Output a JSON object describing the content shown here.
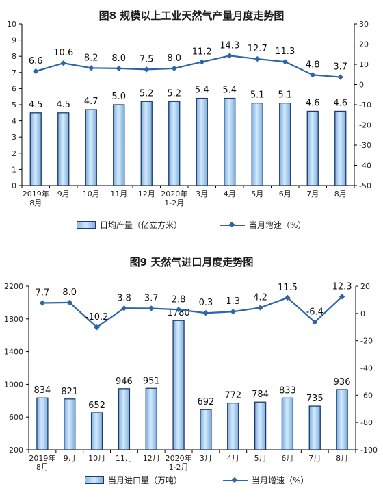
{
  "chart_data": [
    {
      "type": "bar+line",
      "title": "图8  规模以上工业天然气产量月度走势图",
      "categories": [
        "2019年\n8月",
        "9月",
        "10月",
        "11月",
        "12月",
        "2020年\n1-2月",
        "3月",
        "4月",
        "5月",
        "6月",
        "7月",
        "8月"
      ],
      "series": [
        {
          "name": "日均产量（亿立方米）",
          "type": "bar",
          "axis": "left",
          "values": [
            4.5,
            4.5,
            4.7,
            5.0,
            5.2,
            5.2,
            5.4,
            5.4,
            5.1,
            5.1,
            4.6,
            4.6
          ],
          "labels": [
            "4.5",
            "4.5",
            "4.7",
            "5.0",
            "5.2",
            "5.2",
            "5.4",
            "5.4",
            "5.1",
            "5.1",
            "4.6",
            "4.6"
          ]
        },
        {
          "name": "当月增速（%）",
          "type": "line",
          "axis": "right",
          "values": [
            6.6,
            10.6,
            8.2,
            8.0,
            7.5,
            8.0,
            11.2,
            14.3,
            12.7,
            11.3,
            4.8,
            3.7
          ],
          "labels": [
            "6.6",
            "10.6",
            "8.2",
            "8.0",
            "7.5",
            "8.0",
            "11.2",
            "14.3",
            "12.7",
            "11.3",
            "4.8",
            "3.7"
          ]
        }
      ],
      "y_left": {
        "min": 0,
        "max": 10,
        "ticks": [
          0,
          1,
          2,
          3,
          4,
          5,
          6,
          7,
          8,
          9,
          10
        ]
      },
      "y_right": {
        "min": -50,
        "max": 30,
        "ticks": [
          -50,
          -40,
          -30,
          -20,
          -10,
          0,
          10,
          20,
          30
        ]
      },
      "grid": false,
      "legend_position": "bottom",
      "colors": {
        "bar_edge": "#1f3a6a",
        "bar_light": "#d6eafc",
        "bar_dark": "#7aaedf",
        "line": "#2e64a8",
        "axis": "#000000"
      }
    },
    {
      "type": "bar+line",
      "title": "图9  天然气进口月度走势图",
      "categories": [
        "2019年\n8月",
        "9月",
        "10月",
        "11月",
        "12月",
        "2020年\n1-2月",
        "3月",
        "4月",
        "5月",
        "6月",
        "7月",
        "8月"
      ],
      "series": [
        {
          "name": "当月进口量（万吨）",
          "type": "bar",
          "axis": "left",
          "values": [
            834,
            821,
            652,
            946,
            951,
            1780,
            692,
            772,
            784,
            833,
            735,
            936
          ],
          "labels": [
            "834",
            "821",
            "652",
            "946",
            "951",
            "1780",
            "692",
            "772",
            "784",
            "833",
            "735",
            "936"
          ]
        },
        {
          "name": "当月增速（%）",
          "type": "line",
          "axis": "right",
          "values": [
            7.7,
            8.0,
            -10.2,
            3.8,
            3.7,
            2.8,
            0.3,
            1.3,
            4.2,
            11.5,
            -6.4,
            12.3
          ],
          "labels": [
            "7.7",
            "8.0",
            "-10.2",
            "3.8",
            "3.7",
            "2.8",
            "0.3",
            "1.3",
            "4.2",
            "11.5",
            "-6.4",
            "12.3"
          ]
        }
      ],
      "y_left": {
        "min": 200,
        "max": 2200,
        "ticks": [
          200,
          600,
          1000,
          1400,
          1800,
          2200
        ]
      },
      "y_right": {
        "min": -100,
        "max": 20,
        "ticks": [
          -100,
          -80,
          -60,
          -40,
          -20,
          0,
          20
        ]
      },
      "grid": false,
      "legend_position": "bottom",
      "colors": {
        "bar_edge": "#1f3a6a",
        "bar_light": "#d6eafc",
        "bar_dark": "#7aaedf",
        "line": "#2e64a8",
        "axis": "#000000"
      }
    }
  ]
}
